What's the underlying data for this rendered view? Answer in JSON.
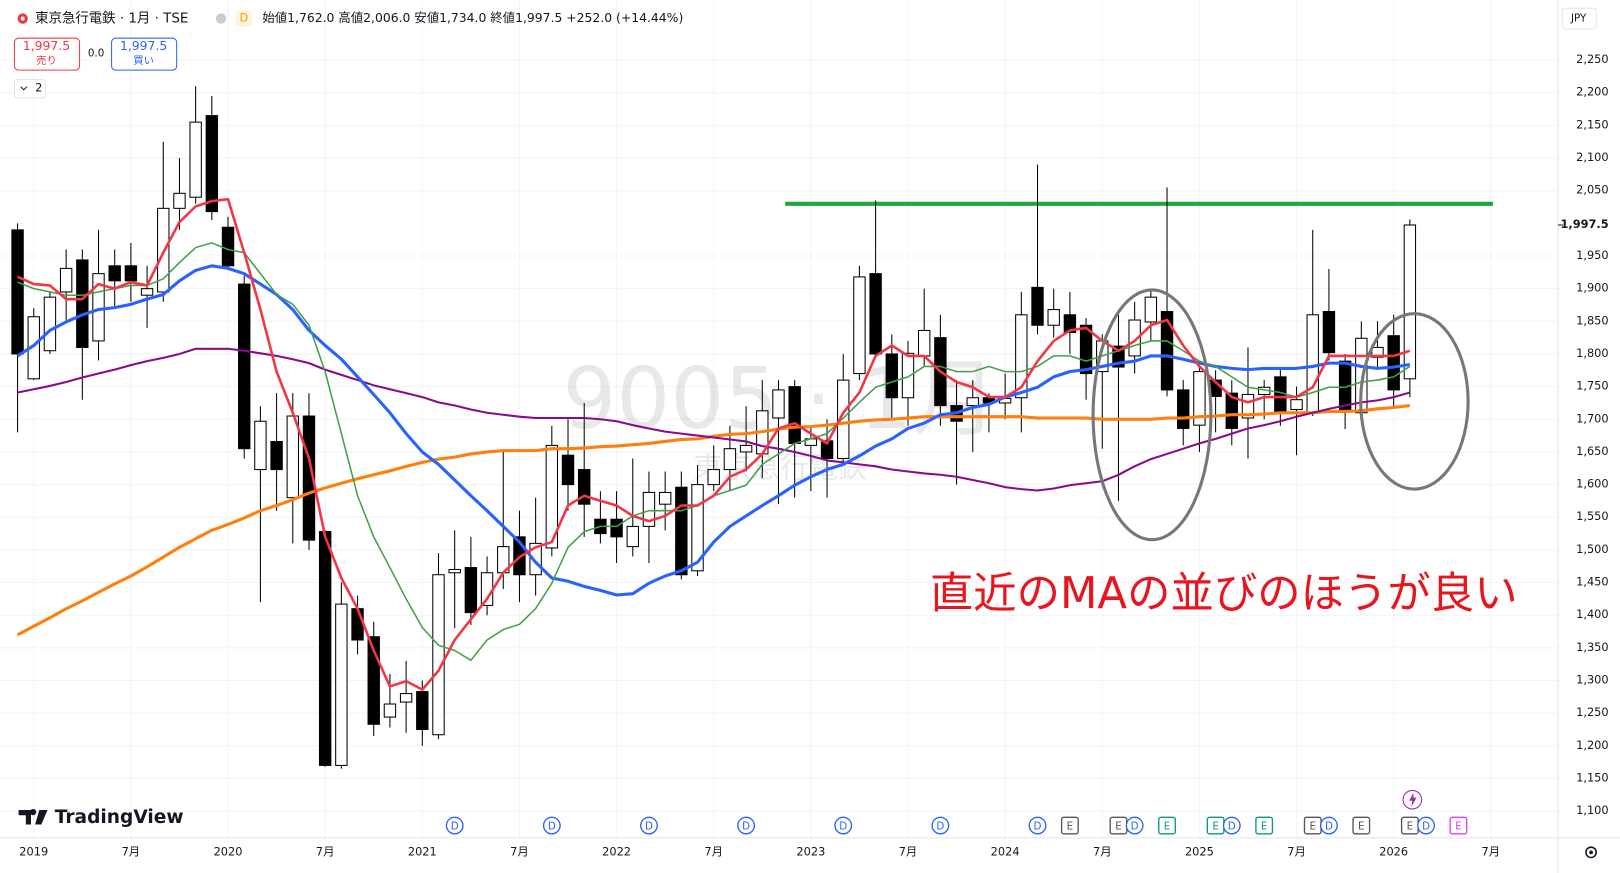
{
  "header": {
    "symbol": "東京急行電鉄 · 1月 · TSE",
    "badge": "D",
    "ohlc_text": "始値1,762.0 高値2,006.0 安値1,734.0 終値1,997.5 +252.0 (+14.44%)"
  },
  "toolbar": {
    "sell_price": "1,997.5",
    "sell_label": "売り",
    "spread": "0.0",
    "buy_price": "1,997.5",
    "buy_label": "買い",
    "collapse_count": "2"
  },
  "branding": "TradingView",
  "currency": "JPY",
  "chart_data": {
    "type": "candlestick",
    "grid": true,
    "up_color": "#ffffff",
    "down_color": "#000000",
    "categories": [
      null,
      "2019",
      null,
      null,
      null,
      null,
      null,
      "7月",
      null,
      null,
      null,
      null,
      null,
      "2020",
      null,
      null,
      null,
      null,
      null,
      "7月",
      null,
      null,
      null,
      null,
      null,
      "2021",
      null,
      null,
      null,
      null,
      null,
      "7月",
      null,
      null,
      null,
      null,
      null,
      "2022",
      null,
      null,
      null,
      null,
      null,
      "7月",
      null,
      null,
      null,
      null,
      null,
      "2023",
      null,
      null,
      null,
      null,
      null,
      "7月",
      null,
      null,
      null,
      null,
      null,
      "2024",
      null,
      null,
      null,
      null,
      null,
      "7月",
      null,
      null,
      null,
      null,
      null,
      "2025",
      null,
      null,
      null,
      null,
      null,
      "7月",
      null,
      null,
      null,
      null,
      null,
      "2026",
      null,
      null,
      null,
      null,
      null,
      "7月"
    ],
    "open": [
      1990,
      1762,
      1805,
      1895,
      1944,
      1820,
      1935,
      1935,
      1890,
      1895,
      2023,
      2040,
      2165,
      1994,
      1907,
      1623,
      1666,
      1580,
      1705,
      1528,
      1170,
      1410,
      1367,
      1244,
      1267,
      1283,
      1217,
      1465,
      1473,
      1415,
      1465,
      1520,
      1462,
      1503,
      1645,
      1623,
      1547,
      1547,
      1505,
      1536,
      1570,
      1596,
      1468,
      1600,
      1623,
      1650,
      1647,
      1702,
      1750,
      1660,
      1667,
      1640,
      1770,
      1923,
      1800,
      1733,
      1797,
      1825,
      1721,
      1721,
      1733,
      1725,
      1733,
      1902,
      1844,
      1860,
      1844,
      1773,
      1812,
      1797,
      1849,
      1865,
      1745,
      1691,
      1760,
      1740,
      1702,
      1738,
      1765,
      1715,
      1710,
      1865,
      1789,
      1710,
      1795,
      1828,
      1762,
      null,
      null,
      null,
      null,
      null
    ],
    "high": [
      2000,
      1870,
      1895,
      1960,
      1960,
      1990,
      1960,
      1970,
      1935,
      2125,
      2100,
      2210,
      2195,
      2010,
      1920,
      1720,
      1740,
      1740,
      1740,
      1530,
      1450,
      1430,
      1390,
      1310,
      1330,
      1300,
      1495,
      1530,
      1520,
      1490,
      1650,
      1560,
      1580,
      1690,
      1700,
      1725,
      1590,
      1590,
      1640,
      1620,
      1620,
      1620,
      1630,
      1660,
      1690,
      1720,
      1760,
      1760,
      1760,
      1690,
      1700,
      1800,
      1935,
      2035,
      1830,
      1820,
      1900,
      1860,
      1760,
      1760,
      1740,
      1770,
      1895,
      2090,
      1900,
      1895,
      1855,
      1830,
      1860,
      1880,
      1900,
      2055,
      1760,
      1780,
      1775,
      1760,
      1810,
      1760,
      1780,
      1750,
      1990,
      1930,
      1800,
      1850,
      1850,
      1860,
      2006,
      null,
      null,
      null,
      null,
      null
    ],
    "low": [
      1680,
      1760,
      1800,
      1850,
      1730,
      1790,
      1870,
      1880,
      1840,
      1880,
      1990,
      2030,
      2005,
      1930,
      1640,
      1420,
      1560,
      1510,
      1500,
      1168,
      1165,
      1340,
      1215,
      1228,
      1220,
      1200,
      1210,
      1380,
      1385,
      1400,
      1440,
      1420,
      1430,
      1490,
      1560,
      1520,
      1510,
      1480,
      1490,
      1480,
      1530,
      1455,
      1460,
      1590,
      1590,
      1620,
      1610,
      1570,
      1580,
      1590,
      1580,
      1630,
      1760,
      1795,
      1700,
      1690,
      1780,
      1690,
      1600,
      1650,
      1680,
      1700,
      1680,
      1830,
      1825,
      1800,
      1730,
      1655,
      1575,
      1770,
      1820,
      1735,
      1660,
      1650,
      1680,
      1660,
      1640,
      1700,
      1690,
      1645,
      1705,
      1790,
      1685,
      1700,
      1780,
      1720,
      1734,
      null,
      null,
      null,
      null,
      null
    ],
    "close": [
      1800,
      1857,
      1887,
      1931,
      1810,
      1923,
      1912,
      1912,
      1900,
      2023,
      2046,
      2155,
      2018,
      1935,
      1655,
      1697,
      1623,
      1705,
      1515,
      1170,
      1417,
      1362,
      1233,
      1264,
      1280,
      1225,
      1462,
      1470,
      1404,
      1465,
      1505,
      1462,
      1510,
      1660,
      1600,
      1570,
      1525,
      1520,
      1536,
      1588,
      1588,
      1462,
      1600,
      1623,
      1655,
      1660,
      1713,
      1745,
      1663,
      1670,
      1640,
      1760,
      1918,
      1800,
      1733,
      1801,
      1836,
      1721,
      1697,
      1733,
      1725,
      1732,
      1860,
      1844,
      1868,
      1833,
      1770,
      1820,
      1780,
      1852,
      1887,
      1745,
      1686,
      1773,
      1735,
      1686,
      1738,
      1749,
      1710,
      1730,
      1860,
      1802,
      1713,
      1824,
      1810,
      1745,
      1997.5,
      null,
      null,
      null,
      null,
      null
    ],
    "series": [
      {
        "color": "#ff7f0e",
        "values": [
          1370,
          1383,
          1396,
          1410,
          1422,
          1435,
          1448,
          1460,
          1474,
          1489,
          1504,
          1517,
          1530,
          1539,
          1549,
          1560,
          1568,
          1577,
          1587,
          1595,
          1602,
          1609,
          1615,
          1621,
          1628,
          1634,
          1639,
          1642,
          1647,
          1650,
          1652,
          1652,
          1652,
          1655,
          1655,
          1656,
          1658,
          1659,
          1661,
          1663,
          1666,
          1669,
          1670,
          1674,
          1677,
          1678,
          1681,
          1685,
          1688,
          1689,
          1691,
          1694,
          1697,
          1699,
          1700,
          1702,
          1704,
          1704,
          1704,
          1704,
          1704,
          1704,
          1704,
          1702,
          1702,
          1702,
          1702,
          1700,
          1700,
          1700,
          1700,
          1702,
          1702,
          1704,
          1705,
          1707,
          1707,
          1708,
          1710,
          1710,
          1710,
          1712,
          1712,
          1713,
          1716,
          1718,
          1721,
          null,
          null,
          null,
          null,
          null
        ]
      },
      {
        "color": "#8b0a8b",
        "values": [
          1741,
          1746,
          1751,
          1757,
          1764,
          1770,
          1776,
          1783,
          1789,
          1794,
          1800,
          1808,
          1808,
          1808,
          1805,
          1801,
          1797,
          1792,
          1786,
          1776,
          1768,
          1760,
          1752,
          1746,
          1740,
          1734,
          1726,
          1721,
          1715,
          1710,
          1707,
          1704,
          1702,
          1702,
          1702,
          1702,
          1700,
          1697,
          1691,
          1686,
          1681,
          1678,
          1675,
          1672,
          1669,
          1666,
          1659,
          1655,
          1650,
          1644,
          1637,
          1634,
          1631,
          1628,
          1623,
          1620,
          1617,
          1615,
          1612,
          1607,
          1602,
          1596,
          1593,
          1591,
          1594,
          1599,
          1602,
          1605,
          1615,
          1628,
          1639,
          1647,
          1655,
          1663,
          1670,
          1678,
          1686,
          1691,
          1697,
          1704,
          1710,
          1716,
          1721,
          1726,
          1729,
          1734,
          1741,
          null,
          null,
          null,
          null,
          null
        ]
      },
      {
        "color": "#2962ff",
        "values": [
          1797,
          1813,
          1836,
          1849,
          1860,
          1868,
          1871,
          1876,
          1884,
          1891,
          1912,
          1928,
          1935,
          1931,
          1923,
          1907,
          1891,
          1868,
          1836,
          1813,
          1792,
          1765,
          1738,
          1710,
          1678,
          1650,
          1631,
          1607,
          1583,
          1560,
          1536,
          1512,
          1481,
          1457,
          1452,
          1444,
          1438,
          1431,
          1433,
          1449,
          1460,
          1468,
          1481,
          1512,
          1536,
          1552,
          1568,
          1583,
          1599,
          1612,
          1623,
          1631,
          1644,
          1659,
          1670,
          1686,
          1694,
          1707,
          1710,
          1718,
          1723,
          1734,
          1741,
          1749,
          1765,
          1773,
          1776,
          1781,
          1786,
          1789,
          1797,
          1797,
          1792,
          1786,
          1781,
          1778,
          1776,
          1778,
          1778,
          1778,
          1781,
          1786,
          1786,
          1781,
          1778,
          1780,
          1784,
          null,
          null,
          null,
          null,
          null
        ]
      },
      {
        "color": "#43a047",
        "values": [
          1910,
          1900,
          1895,
          1890,
          1890,
          1895,
          1900,
          1905,
          1905,
          1915,
          1940,
          1963,
          1970,
          1960,
          1955,
          1923,
          1891,
          1876,
          1844,
          1773,
          1678,
          1583,
          1520,
          1473,
          1425,
          1381,
          1354,
          1346,
          1331,
          1362,
          1378,
          1386,
          1410,
          1449,
          1504,
          1528,
          1536,
          1536,
          1552,
          1560,
          1560,
          1560,
          1568,
          1583,
          1591,
          1599,
          1631,
          1647,
          1663,
          1670,
          1678,
          1702,
          1726,
          1749,
          1757,
          1765,
          1781,
          1781,
          1773,
          1773,
          1781,
          1773,
          1773,
          1781,
          1797,
          1797,
          1789,
          1797,
          1805,
          1813,
          1820,
          1820,
          1805,
          1789,
          1781,
          1765,
          1749,
          1745,
          1741,
          1734,
          1741,
          1749,
          1749,
          1757,
          1760,
          1765,
          1781,
          null,
          null,
          null,
          null,
          null
        ]
      },
      {
        "color": "#f23645",
        "values": [
          1918,
          1907,
          1905,
          1884,
          1884,
          1907,
          1900,
          1910,
          1905,
          1955,
          2002,
          2026,
          2034,
          2037,
          1955,
          1868,
          1773,
          1710,
          1640,
          1520,
          1457,
          1410,
          1346,
          1291,
          1299,
          1286,
          1315,
          1362,
          1394,
          1425,
          1465,
          1489,
          1504,
          1512,
          1568,
          1583,
          1575,
          1568,
          1552,
          1544,
          1552,
          1568,
          1568,
          1583,
          1612,
          1623,
          1647,
          1686,
          1694,
          1678,
          1663,
          1710,
          1741,
          1797,
          1813,
          1797,
          1797,
          1773,
          1757,
          1749,
          1734,
          1734,
          1749,
          1789,
          1820,
          1836,
          1840,
          1820,
          1805,
          1820,
          1844,
          1852,
          1813,
          1781,
          1757,
          1734,
          1726,
          1734,
          1734,
          1734,
          1749,
          1797,
          1797,
          1797,
          1797,
          1797,
          1805,
          null,
          null,
          null,
          null,
          null
        ]
      }
    ],
    "ylim": [
      1059,
      2342
    ],
    "yticks": [
      {
        "value": 1100,
        "label": "1,100"
      },
      {
        "value": 1150,
        "label": "1,150"
      },
      {
        "value": 1200,
        "label": "1,200"
      },
      {
        "value": 1250,
        "label": "1,250"
      },
      {
        "value": 1300,
        "label": "1,300"
      },
      {
        "value": 1350,
        "label": "1,350"
      },
      {
        "value": 1400,
        "label": "1,400"
      },
      {
        "value": 1450,
        "label": "1,450"
      },
      {
        "value": 1500,
        "label": "1,500"
      },
      {
        "value": 1550,
        "label": "1,550"
      },
      {
        "value": 1600,
        "label": "1,600"
      },
      {
        "value": 1650,
        "label": "1,650"
      },
      {
        "value": 1700,
        "label": "1,700"
      },
      {
        "value": 1750,
        "label": "1,750"
      },
      {
        "value": 1800,
        "label": "1,800"
      },
      {
        "value": 1850,
        "label": "1,850"
      },
      {
        "value": 1900,
        "label": "1,900"
      },
      {
        "value": 1950,
        "label": "1,950"
      },
      {
        "value": 2050,
        "label": "2,050"
      },
      {
        "value": 2100,
        "label": "2,100"
      },
      {
        "value": 2150,
        "label": "2,150"
      },
      {
        "value": 2200,
        "label": "2,200"
      },
      {
        "value": 2250,
        "label": "2,250"
      }
    ],
    "last_price": {
      "value": 1997.5,
      "label": "1,997.5"
    },
    "hlines": [
      {
        "value": 2030,
        "color": "#1fa83a"
      }
    ],
    "annotation": "直近のMAの並びのほうが良い",
    "annotation_color": "#e8141e",
    "watermark": "9005 · 1月",
    "watermark_sub": "東京急行電鉄",
    "events": [
      {
        "label": "D",
        "index": 27,
        "color": "#2962ff",
        "shape": "circle"
      },
      {
        "label": "D",
        "index": 33,
        "color": "#2962ff",
        "shape": "circle"
      },
      {
        "label": "D",
        "index": 39,
        "color": "#2962ff",
        "shape": "circle"
      },
      {
        "label": "D",
        "index": 45,
        "color": "#2962ff",
        "shape": "circle"
      },
      {
        "label": "D",
        "index": 51,
        "color": "#2962ff",
        "shape": "circle"
      },
      {
        "label": "D",
        "index": 57,
        "color": "#2962ff",
        "shape": "circle"
      },
      {
        "label": "D",
        "index": 63,
        "color": "#2962ff",
        "shape": "circle"
      },
      {
        "label": "E",
        "index": 65,
        "color": "#555555",
        "shape": "square"
      },
      {
        "label": "E",
        "index": 68,
        "color": "#555555",
        "shape": "square"
      },
      {
        "label": "D",
        "index": 69,
        "color": "#2962ff",
        "shape": "circle"
      },
      {
        "label": "E",
        "index": 71,
        "color": "#089981",
        "shape": "square"
      },
      {
        "label": "E",
        "index": 74,
        "color": "#089981",
        "shape": "square"
      },
      {
        "label": "D",
        "index": 75,
        "color": "#2962ff",
        "shape": "circle"
      },
      {
        "label": "E",
        "index": 77,
        "color": "#089981",
        "shape": "square"
      },
      {
        "label": "E",
        "index": 80,
        "color": "#555555",
        "shape": "square"
      },
      {
        "label": "D",
        "index": 81,
        "color": "#2962ff",
        "shape": "circle"
      },
      {
        "label": "E",
        "index": 83,
        "color": "#555555",
        "shape": "square"
      },
      {
        "label": "E",
        "index": 86,
        "color": "#555555",
        "shape": "square"
      },
      {
        "label": "D",
        "index": 87,
        "color": "#2962ff",
        "shape": "circle"
      },
      {
        "label": "E",
        "index": 89,
        "color": "#e040fb",
        "shape": "square"
      }
    ]
  }
}
